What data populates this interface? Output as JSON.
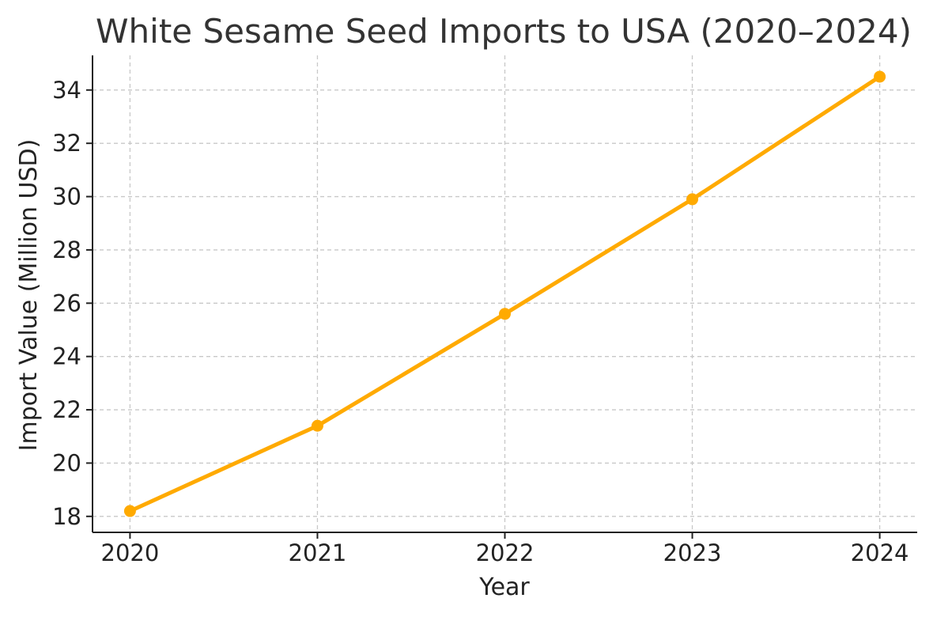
{
  "chart_data": {
    "type": "line",
    "title": "White Sesame Seed Imports to USA (2020–2024)",
    "xlabel": "Year",
    "ylabel": "Import Value (Million USD)",
    "x": [
      2020,
      2021,
      2022,
      2023,
      2024
    ],
    "x_tick_labels": [
      "2020",
      "2021",
      "2022",
      "2023",
      "2024"
    ],
    "y_ticks": [
      18,
      20,
      22,
      24,
      26,
      28,
      30,
      32,
      34
    ],
    "y_tick_labels": [
      "18",
      "20",
      "22",
      "24",
      "26",
      "28",
      "30",
      "32",
      "34"
    ],
    "ylim": [
      17.4,
      35.3
    ],
    "xlim": [
      2019.8,
      2024.2
    ],
    "grid": true,
    "series": [
      {
        "values": [
          18.2,
          21.4,
          25.6,
          29.9,
          34.5
        ],
        "color": "#FFAA00",
        "marker": "circle"
      }
    ]
  }
}
